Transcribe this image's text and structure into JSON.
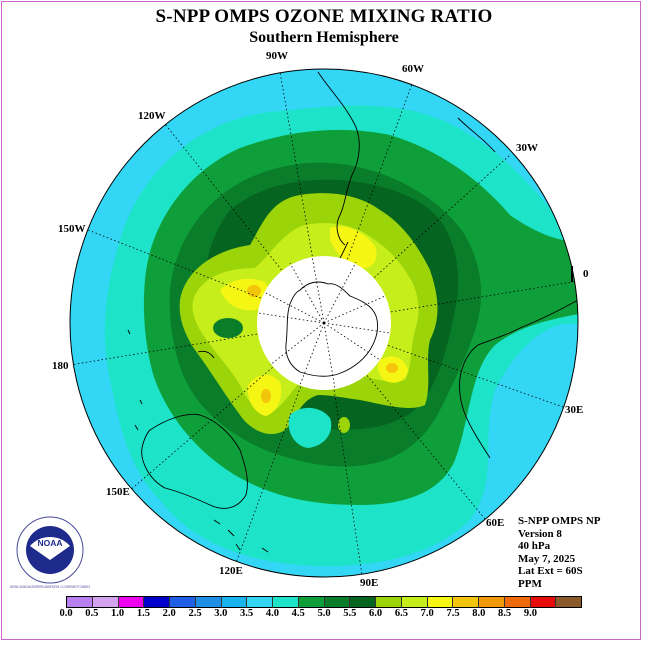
{
  "title": "S-NPP OMPS OZONE MIXING RATIO",
  "subtitle": "Southern Hemisphere",
  "longitude_labels": {
    "w90": "90W",
    "w60": "60W",
    "w30": "30W",
    "e0": "0",
    "e30": "30E",
    "e60": "60E",
    "e90": "90E",
    "e120": "120E",
    "e150": "150E",
    "e180": "180",
    "w150": "150W",
    "w120": "120W"
  },
  "info": {
    "instrument": "S-NPP OMPS NP",
    "version": "Version 8",
    "level": "40 hPa",
    "date": "May 7, 2025",
    "lat_ext": "Lat Ext = 60S",
    "units": "PPM"
  },
  "logo": {
    "text": "NOAA",
    "ring_text": "NATIONAL OCEANIC AND ATMOSPHERIC ADMINISTRATION · U.S. DEPARTMENT OF COMMERCE"
  },
  "colorbar": {
    "ticks": [
      "0.0",
      "0.5",
      "1.0",
      "1.5",
      "2.0",
      "2.5",
      "3.0",
      "3.5",
      "4.0",
      "4.5",
      "5.0",
      "5.5",
      "6.0",
      "6.5",
      "7.0",
      "7.5",
      "8.0",
      "8.5",
      "9.0"
    ],
    "colors": [
      "#b77ff0",
      "#d4a3f0",
      "#ee00ee",
      "#0000cc",
      "#1f5fe6",
      "#1f8fe6",
      "#19b3ee",
      "#33d6f5",
      "#1de3c8",
      "#0f9f3a",
      "#0a7d2a",
      "#056420",
      "#9cd40a",
      "#c6ee1a",
      "#f6f614",
      "#f2c40a",
      "#f09a0a",
      "#ee6a0a",
      "#e60c0c",
      "#8b5a2b"
    ]
  },
  "map_colors": {
    "band_3_0_3_5": "#33d6f5",
    "band_3_5_4_0": "#1de3c8",
    "band_4_0_4_5": "#0f9f3a",
    "band_4_5_5_0": "#0a7d2a",
    "band_5_0_5_5": "#056420",
    "band_5_5_6_0": "#9cd40a",
    "band_6_0_6_5": "#c6ee1a",
    "band_6_5_7_0": "#f6f614",
    "band_7_0_7_5": "#f2c40a",
    "no_data": "#ffffff"
  }
}
